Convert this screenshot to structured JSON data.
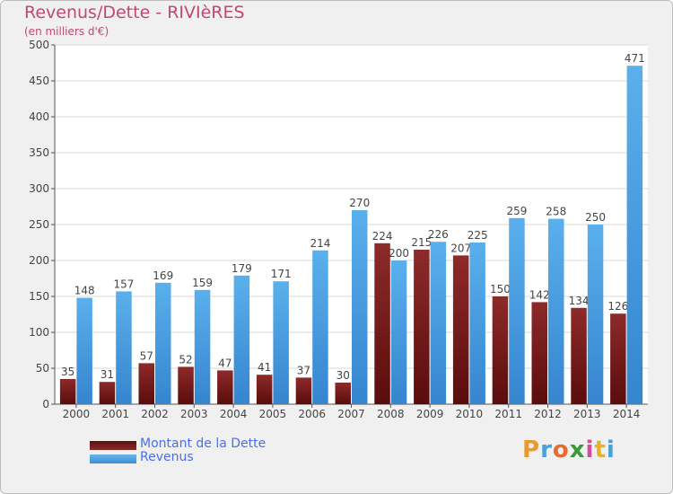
{
  "header": {
    "title": "Revenus/Dette - RIVIèRES",
    "subtitle": "(en milliers d'€)"
  },
  "chart_data": {
    "type": "bar",
    "categories": [
      "2000",
      "2001",
      "2002",
      "2003",
      "2004",
      "2005",
      "2006",
      "2007",
      "2008",
      "2009",
      "2010",
      "2011",
      "2012",
      "2013",
      "2014"
    ],
    "series": [
      {
        "name": "Montant de la Dette",
        "color": "#7a1818",
        "values": [
          35,
          31,
          57,
          52,
          47,
          41,
          37,
          30,
          224,
          215,
          207,
          150,
          142,
          134,
          126
        ]
      },
      {
        "name": "Revenus",
        "color": "#4da3e6",
        "values": [
          148,
          157,
          169,
          159,
          179,
          171,
          214,
          270,
          200,
          226,
          225,
          259,
          258,
          250,
          471
        ]
      }
    ],
    "y_ticks": [
      "0",
      "50",
      "100",
      "150",
      "200",
      "250",
      "300",
      "350",
      "400",
      "450",
      "500"
    ],
    "ylim": [
      0,
      500
    ],
    "grid": "horizontal",
    "legend_position": "bottom-left"
  },
  "legend": {
    "items": [
      {
        "label": "Montant de la Dette",
        "color": "#5c0f0f"
      },
      {
        "label": "Revenus",
        "color": "#4da3e6"
      }
    ]
  },
  "logo": {
    "letters": [
      "P",
      "r",
      "o",
      "x",
      "i",
      "t",
      "i"
    ],
    "colors": [
      "#e89a2c",
      "#4aa0d8",
      "#e86a2c",
      "#3a9a3a",
      "#d84a9a",
      "#e8b02c",
      "#4aa0d8"
    ]
  }
}
